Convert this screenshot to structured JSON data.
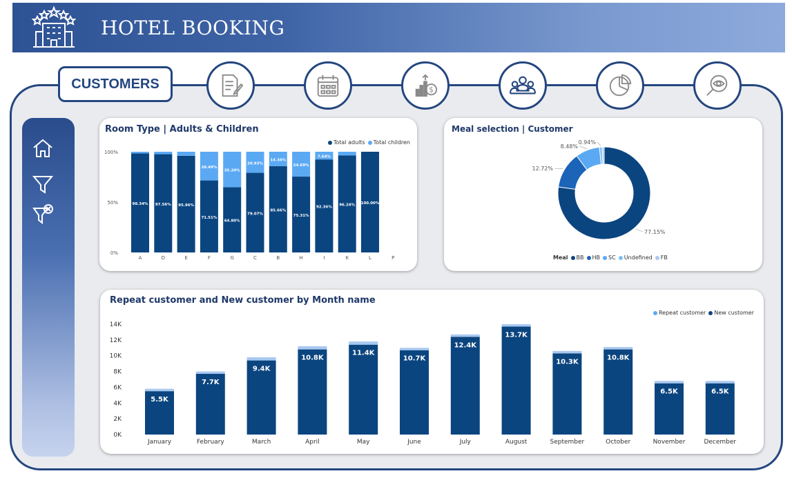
{
  "header": {
    "title": "HOTEL BOOKING",
    "logo_icon": "hotel-stars-icon"
  },
  "nav": {
    "active_tab": "CUSTOMERS",
    "icons": [
      "document-edit-icon",
      "calendar-icon",
      "revenue-growth-icon",
      "customers-group-icon",
      "pie-chart-icon",
      "search-eye-icon"
    ]
  },
  "sidebar": {
    "icons": [
      "home-icon",
      "filter-icon",
      "clear-filter-icon"
    ]
  },
  "colors": {
    "dark_blue": "#0b4580",
    "mid_blue": "#1b64b7",
    "light_blue": "#5ba9f3",
    "sky_blue": "#7cc0f5",
    "pale_blue": "#a7c8f0",
    "border": "#24467f"
  },
  "room_chart": {
    "title": "Room Type | Adults & Children",
    "legend": [
      "Total adults",
      "Total children"
    ],
    "yticks": [
      "100%",
      "50%",
      "0%"
    ]
  },
  "meal_chart": {
    "title": "Meal selection | Customer",
    "legend_title": "Meal",
    "legend": [
      "BB",
      "HB",
      "SC",
      "Undefined",
      "FB"
    ],
    "slice_labels": [
      "77.15%",
      "12.72%",
      "8.48%",
      "0.94%"
    ]
  },
  "month_chart": {
    "title": "Repeat customer and New customer by Month name",
    "legend": [
      "Repeat customer",
      "New customer"
    ],
    "yticks": [
      "14K",
      "12K",
      "10K",
      "8K",
      "6K",
      "4K",
      "2K",
      "0K"
    ]
  },
  "chart_data": [
    {
      "type": "bar",
      "title": "Room Type | Adults & Children",
      "stacked": "100%",
      "categories": [
        "A",
        "D",
        "E",
        "F",
        "G",
        "C",
        "B",
        "H",
        "I",
        "K",
        "L",
        "P"
      ],
      "series": [
        {
          "name": "Total adults",
          "values": [
            98.34,
            97.56,
            95.96,
            71.51,
            64.8,
            79.07,
            85.66,
            75.31,
            92.36,
            96.24,
            100.0,
            null
          ],
          "labels": [
            "98.34%",
            "97.56%",
            "95.96%",
            "71.51%",
            "64.80%",
            "79.07%",
            "85.66%",
            "75.31%",
            "92.36%",
            "96.24%",
            "100.00%",
            ""
          ]
        },
        {
          "name": "Total children",
          "values": [
            1.66,
            2.44,
            4.04,
            28.49,
            35.2,
            20.93,
            14.34,
            24.69,
            7.64,
            3.76,
            0,
            null
          ],
          "labels": [
            "",
            "",
            "",
            "28.49%",
            "35.20%",
            "20.93%",
            "14.34%",
            "24.69%",
            "7.64%",
            "",
            "",
            ""
          ]
        }
      ],
      "ylim": [
        0,
        100
      ]
    },
    {
      "type": "pie",
      "title": "Meal selection | Customer",
      "categories": [
        "BB",
        "HB",
        "SC",
        "Undefined",
        "FB"
      ],
      "values": [
        77.15,
        12.72,
        8.48,
        0.94,
        0.71
      ]
    },
    {
      "type": "bar",
      "title": "Repeat customer and New customer by Month name",
      "stacked": true,
      "categories": [
        "January",
        "February",
        "March",
        "April",
        "May",
        "June",
        "July",
        "August",
        "September",
        "October",
        "November",
        "December"
      ],
      "series": [
        {
          "name": "New customer",
          "values": [
            5.5,
            7.7,
            9.4,
            10.8,
            11.4,
            10.7,
            12.4,
            13.7,
            10.3,
            10.8,
            6.5,
            6.5
          ],
          "labels": [
            "5.5K",
            "7.7K",
            "9.4K",
            "10.8K",
            "11.4K",
            "10.7K",
            "12.4K",
            "13.7K",
            "10.3K",
            "10.8K",
            "6.5K",
            "6.5K"
          ]
        },
        {
          "name": "Repeat customer",
          "values": [
            0.3,
            0.3,
            0.4,
            0.4,
            0.4,
            0.3,
            0.3,
            0.3,
            0.3,
            0.3,
            0.3,
            0.3
          ]
        }
      ],
      "ylim": [
        0,
        14
      ]
    }
  ]
}
